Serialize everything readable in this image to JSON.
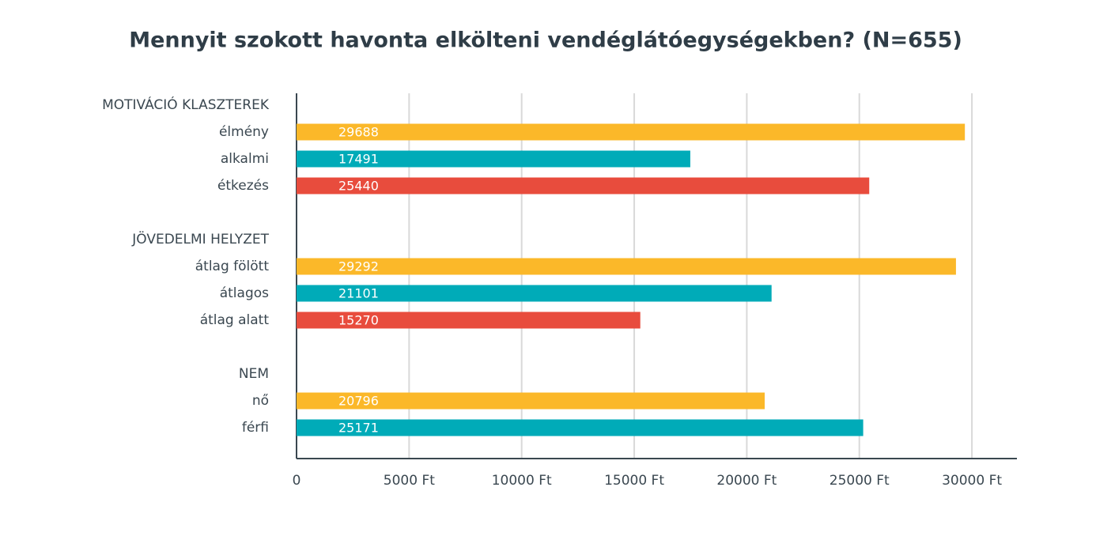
{
  "chart_data": {
    "type": "bar",
    "orientation": "horizontal",
    "title": "Mennyit szokott havonta elkölteni vendéglátóegységekben? (N=655)",
    "categories": [
      "MOTIVÁCIÓ KLASZTEREK",
      "élmény",
      "alkalmi",
      "étkezés",
      null,
      "JÖVEDELMI HELYZET",
      "átlag fölött",
      "átlagos",
      "átlag alatt",
      null,
      "NEM",
      "nő",
      "férfi"
    ],
    "values": [
      null,
      29688,
      17491,
      25440,
      null,
      null,
      29292,
      21101,
      15270,
      null,
      null,
      20796,
      25171
    ],
    "colors": [
      null,
      "#fbb829",
      "#00abb8",
      "#e84c3d",
      null,
      null,
      "#fbb829",
      "#00abb8",
      "#e84c3d",
      null,
      null,
      "#fbb829",
      "#00abb8"
    ],
    "xlim": [
      0,
      32000
    ],
    "xticks": [
      0,
      {
        "value": 5000,
        "label": "5000 Ft"
      },
      {
        "value": 10000,
        "label": "10000 Ft"
      },
      {
        "value": 15000,
        "label": "15000 Ft"
      },
      {
        "value": 20000,
        "label": "20000 Ft"
      },
      {
        "value": 25000,
        "label": "25000 Ft"
      },
      {
        "value": 30000,
        "label": "30000 Ft"
      }
    ],
    "grid": true
  }
}
